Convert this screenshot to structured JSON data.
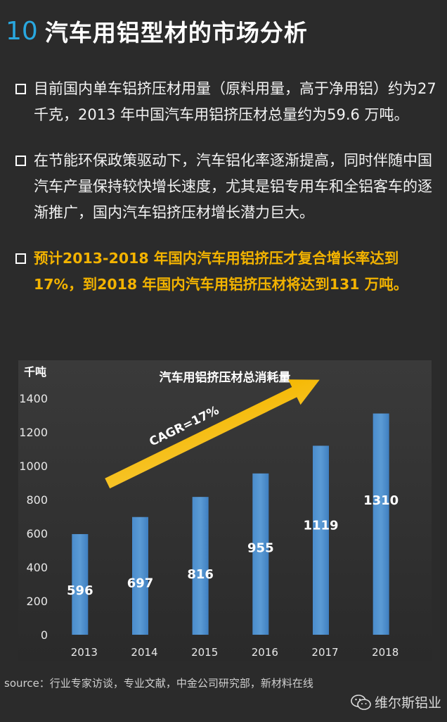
{
  "header": {
    "number": "10",
    "title": "汽车用铝型材的市场分析"
  },
  "bullets": [
    {
      "text": "目前国内单车铝挤压材用量（原料用量，高于净用铝）约为27 千克，2013 年中国汽车用铝挤压材总量约为59.6 万吨。"
    },
    {
      "text": "在节能环保政策驱动下，汽车铝化率逐渐提高，同时伴随中国汽车产量保持较快增长速度，尤其是铝专用车和全铝客车的逐渐推广，国内汽车铝挤压材增长潜力巨大。"
    },
    {
      "text": "预计2013-2018 年国内汽车用铝挤压才复合增长率达到17%，到2018 年国内汽车用铝挤压材将达到131 万吨。"
    }
  ],
  "chart_data": {
    "type": "bar",
    "title": "汽车用铝挤压材总消耗量",
    "ylabel": "千吨",
    "xlabel": "",
    "categories": [
      "2013",
      "2014",
      "2015",
      "2016",
      "2017",
      "2018"
    ],
    "values": [
      596,
      697,
      816,
      955,
      1119,
      1310
    ],
    "ylim": [
      0,
      1400
    ],
    "yticks": [
      0,
      200,
      400,
      600,
      800,
      1000,
      1200,
      1400
    ],
    "grid": false,
    "annotation": "CAGR=17%",
    "bar_color": "#5b9bd5",
    "arrow_color": "#f5b800"
  },
  "source": "source：行业专家访谈，专业文献，中金公司研究部，新材料在线",
  "watermark": "维尔斯铝业",
  "colors": {
    "accent": "#29a8e0",
    "highlight": "#f3b300",
    "background": "#2b2b2b"
  }
}
